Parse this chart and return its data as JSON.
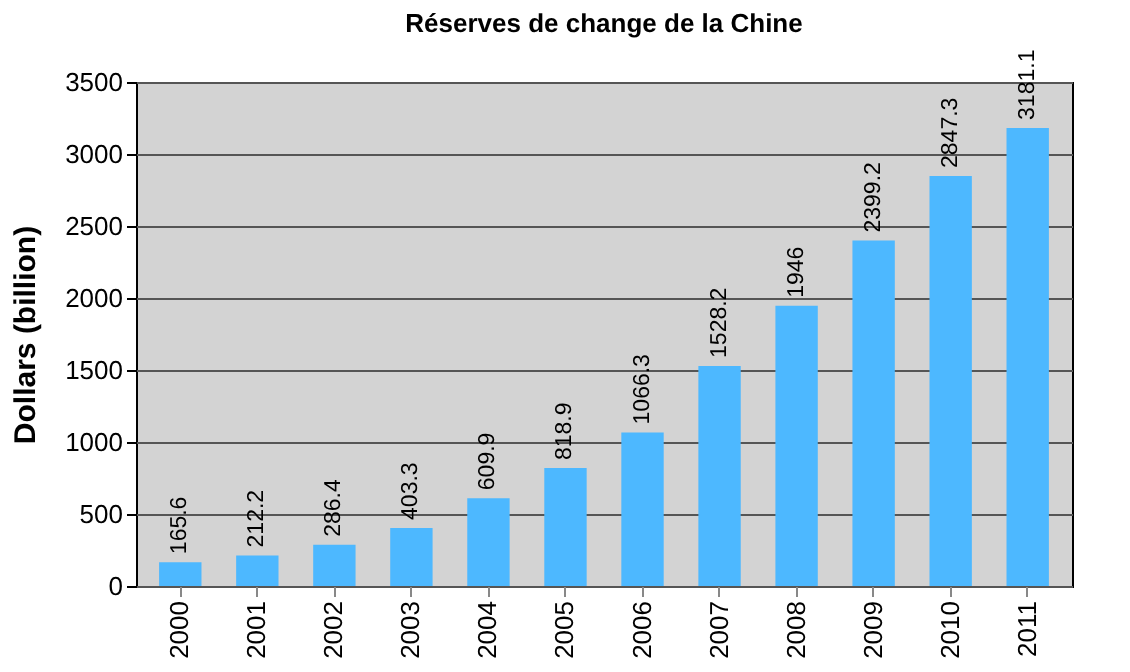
{
  "chart_data": {
    "type": "bar",
    "title": "Réserves de change de la Chine",
    "ylabel": "Dollars (billion)",
    "categories": [
      "2000",
      "2001",
      "2002",
      "2003",
      "2004",
      "2005",
      "2006",
      "2007",
      "2008",
      "2009",
      "2010",
      "2011"
    ],
    "values": [
      165.6,
      212.2,
      286.4,
      403.3,
      609.9,
      818.9,
      1066.3,
      1528.2,
      1946,
      2399.2,
      2847.3,
      3181.1
    ],
    "color": "#4db8ff",
    "ylim": [
      0,
      3500
    ],
    "yticks": [
      0,
      500,
      1000,
      1500,
      2000,
      2500,
      3000,
      3500
    ],
    "grid": "y",
    "data_labels": true
  }
}
